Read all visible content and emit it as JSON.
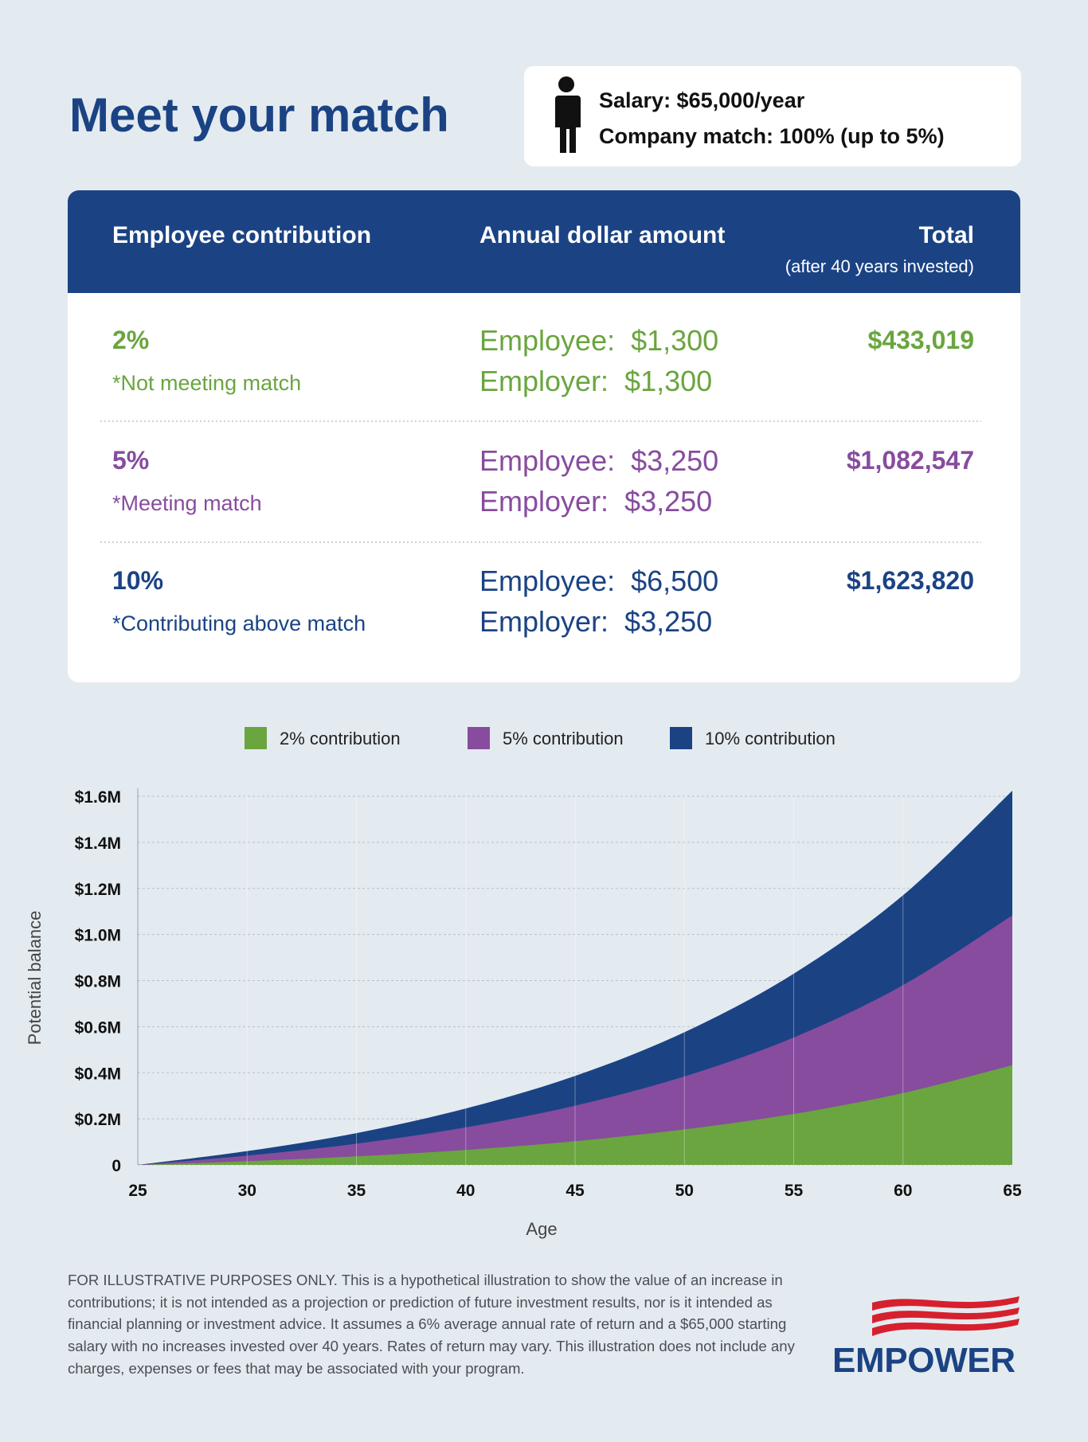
{
  "header": {
    "title": "Meet your match"
  },
  "profile": {
    "salary": "Salary: $65,000/year",
    "match": "Company match: 100% (up to 5%)"
  },
  "table": {
    "columns": [
      "Employee contribution",
      "Annual dollar amount",
      "Total"
    ],
    "total_note": "(after 40 years invested)",
    "rows": [
      {
        "percent": "2%",
        "note": "*Not meeting match",
        "employee": "Employee:  $1,300",
        "employer": "Employer:  $1,300",
        "total": "$433,019",
        "color": "#6aa53f"
      },
      {
        "percent": "5%",
        "note": "*Meeting match",
        "employee": "Employee:  $3,250",
        "employer": "Employer:  $3,250",
        "total": "$1,082,547",
        "color": "#874c9e"
      },
      {
        "percent": "10%",
        "note": "*Contributing above match",
        "employee": "Employee:  $6,500",
        "employer": "Employer:  $3,250",
        "total": "$1,623,820",
        "color": "#1b4384"
      }
    ]
  },
  "chart_data": {
    "type": "area",
    "x_label": "Age",
    "y_label": "Potential balance",
    "x": [
      25,
      30,
      35,
      40,
      45,
      50,
      55,
      60,
      65
    ],
    "xlim": [
      25,
      65
    ],
    "xticks": [
      25,
      30,
      35,
      40,
      45,
      50,
      55,
      60,
      65
    ],
    "ylim": [
      0,
      1600000
    ],
    "yticks": [
      0,
      {
        "value": 200000,
        "label": "$0.2M"
      },
      {
        "value": 400000,
        "label": "$0.4M"
      },
      {
        "value": 600000,
        "label": "$0.6M"
      },
      {
        "value": 800000,
        "label": "$0.8M"
      },
      {
        "value": 1000000,
        "label": "$1.0M"
      },
      {
        "value": 1200000,
        "label": "$1.2M"
      },
      {
        "value": 1400000,
        "label": "$1.4M"
      },
      {
        "value": 1600000,
        "label": "$1.6M"
      }
    ],
    "grid": true,
    "series": [
      {
        "name": "2% contribution",
        "color": "#6aa53f",
        "values": [
          0,
          16000,
          37000,
          65000,
          103000,
          154000,
          221000,
          312000,
          433000
        ]
      },
      {
        "name": "5% contribution",
        "color": "#874c9e",
        "values": [
          0,
          40000,
          92000,
          163000,
          257000,
          384000,
          553000,
          780000,
          1083000
        ]
      },
      {
        "name": "10% contribution",
        "color": "#1b4384",
        "values": [
          0,
          60000,
          138000,
          245000,
          386000,
          576000,
          830000,
          1170000,
          1624000
        ]
      }
    ]
  },
  "disclaimer": "FOR ILLUSTRATIVE PURPOSES ONLY. This is a hypothetical illustration to show the value of an increase in contributions; it is not intended as a projection or prediction of future investment results, nor is it intended as financial planning or investment advice. It assumes a 6% average annual rate of return and a $65,000 starting salary with no increases invested over 40 years. Rates of return may vary. This illustration does not include any charges, expenses or fees that may be associated with your program.",
  "logo": "EMPOWER"
}
